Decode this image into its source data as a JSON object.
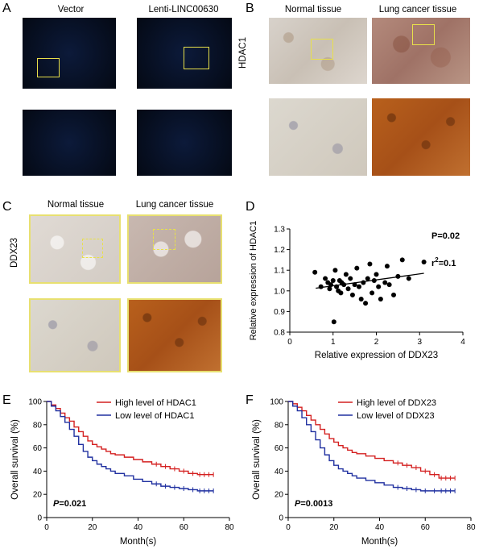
{
  "panels": {
    "A": {
      "letter": "A",
      "captions": [
        "Vector",
        "Lenti-LINC00630"
      ]
    },
    "B": {
      "letter": "B",
      "row_label": "HDAC1",
      "captions": [
        "Normal tissue",
        "Lung cancer tissue"
      ]
    },
    "C": {
      "letter": "C",
      "row_label": "DDX23",
      "captions": [
        "Normal tissue",
        "Lung cancer tissue"
      ]
    },
    "D": {
      "letter": "D"
    },
    "E": {
      "letter": "E"
    },
    "F": {
      "letter": "F"
    }
  },
  "colors": {
    "high_line": "#d42020",
    "low_line": "#2030a0",
    "highlight_box": "#e8e04a"
  },
  "chart_data": [
    {
      "panel": "D",
      "type": "scatter",
      "xlabel": "Relative expression of DDX23",
      "ylabel": "Relative expression of HDAC1",
      "xlim": [
        0,
        4
      ],
      "ylim": [
        0.8,
        1.3
      ],
      "xticks": [
        "0",
        "1",
        "2",
        "3",
        "4"
      ],
      "yticks": [
        "0.8",
        "0.9",
        "1.0",
        "1.1",
        "1.2",
        "1.3"
      ],
      "annotations": {
        "p_value": "P=0.02",
        "r2_prefix": "r",
        "r2_sup": "2",
        "r2_value": "=0.1"
      },
      "regression": {
        "x": [
          0.6,
          3.1
        ],
        "y": [
          1.013,
          1.085
        ]
      },
      "points": [
        [
          0.58,
          1.09
        ],
        [
          0.72,
          1.02
        ],
        [
          0.82,
          1.06
        ],
        [
          0.88,
          1.04
        ],
        [
          0.92,
          1.01
        ],
        [
          0.95,
          1.03
        ],
        [
          1.0,
          1.05
        ],
        [
          1.02,
          0.85
        ],
        [
          1.05,
          1.1
        ],
        [
          1.08,
          1.02
        ],
        [
          1.12,
          1.0
        ],
        [
          1.15,
          1.05
        ],
        [
          1.18,
          0.99
        ],
        [
          1.2,
          1.04
        ],
        [
          1.25,
          1.03
        ],
        [
          1.3,
          1.08
        ],
        [
          1.35,
          1.01
        ],
        [
          1.4,
          1.06
        ],
        [
          1.45,
          0.98
        ],
        [
          1.5,
          1.03
        ],
        [
          1.55,
          1.11
        ],
        [
          1.6,
          1.02
        ],
        [
          1.65,
          0.96
        ],
        [
          1.7,
          1.04
        ],
        [
          1.75,
          0.94
        ],
        [
          1.8,
          1.06
        ],
        [
          1.85,
          1.13
        ],
        [
          1.9,
          0.99
        ],
        [
          1.95,
          1.05
        ],
        [
          2.0,
          1.08
        ],
        [
          2.05,
          1.02
        ],
        [
          2.1,
          0.96
        ],
        [
          2.2,
          1.04
        ],
        [
          2.25,
          1.12
        ],
        [
          2.3,
          1.03
        ],
        [
          2.4,
          0.98
        ],
        [
          2.5,
          1.07
        ],
        [
          2.6,
          1.15
        ],
        [
          2.75,
          1.06
        ],
        [
          3.1,
          1.14
        ]
      ]
    },
    {
      "panel": "E",
      "type": "line",
      "xlabel": "Month(s)",
      "ylabel": "Overall survival (%)",
      "xlim": [
        0,
        80
      ],
      "ylim": [
        0,
        100
      ],
      "xticks": [
        "0",
        "20",
        "40",
        "60",
        "80"
      ],
      "yticks": [
        "0",
        "20",
        "40",
        "60",
        "80",
        "100"
      ],
      "p_label": "P",
      "p_value": "=0.021",
      "series": [
        {
          "name": "High level of HDAC1",
          "x": [
            0,
            2,
            4,
            6,
            8,
            10,
            12,
            14,
            16,
            18,
            20,
            22,
            24,
            26,
            28,
            30,
            34,
            38,
            42,
            46,
            50,
            54,
            58,
            62,
            66,
            70,
            73
          ],
          "y": [
            100,
            97,
            94,
            90,
            86,
            83,
            78,
            74,
            70,
            66,
            63,
            61,
            59,
            57,
            55,
            54,
            52,
            50,
            48,
            46,
            44,
            42,
            40,
            38,
            37,
            37,
            37
          ]
        },
        {
          "name": "Low level of HDAC1",
          "x": [
            0,
            2,
            4,
            6,
            8,
            10,
            12,
            14,
            16,
            18,
            20,
            22,
            24,
            26,
            28,
            30,
            34,
            38,
            42,
            46,
            50,
            54,
            58,
            62,
            66,
            70,
            73
          ],
          "y": [
            100,
            96,
            92,
            87,
            82,
            76,
            70,
            63,
            57,
            52,
            49,
            46,
            44,
            42,
            40,
            38,
            36,
            33,
            31,
            29,
            27,
            26,
            25,
            24,
            23,
            23,
            23
          ]
        }
      ]
    },
    {
      "panel": "F",
      "type": "line",
      "xlabel": "Month(s)",
      "ylabel": "Overall survival (%)",
      "xlim": [
        0,
        80
      ],
      "ylim": [
        0,
        100
      ],
      "xticks": [
        "0",
        "20",
        "40",
        "60",
        "80"
      ],
      "yticks": [
        "0",
        "20",
        "40",
        "60",
        "80",
        "100"
      ],
      "p_label": "P",
      "p_value": "=0.0013",
      "series": [
        {
          "name": "High level of DDX23",
          "x": [
            0,
            2,
            4,
            6,
            8,
            10,
            12,
            14,
            16,
            18,
            20,
            22,
            24,
            26,
            28,
            30,
            34,
            38,
            42,
            46,
            50,
            54,
            58,
            62,
            66,
            70,
            73
          ],
          "y": [
            100,
            98,
            95,
            92,
            88,
            84,
            80,
            76,
            72,
            68,
            65,
            62,
            60,
            58,
            56,
            55,
            53,
            51,
            49,
            47,
            45,
            43,
            40,
            37,
            34,
            34,
            34
          ]
        },
        {
          "name": "Low level of DDX23",
          "x": [
            0,
            2,
            4,
            6,
            8,
            10,
            12,
            14,
            16,
            18,
            20,
            22,
            24,
            26,
            28,
            30,
            34,
            38,
            42,
            46,
            50,
            54,
            58,
            62,
            66,
            70,
            73
          ],
          "y": [
            100,
            96,
            92,
            86,
            80,
            74,
            67,
            60,
            54,
            49,
            45,
            42,
            40,
            38,
            36,
            34,
            32,
            30,
            28,
            26,
            25,
            24,
            23,
            23,
            23,
            23,
            23
          ]
        }
      ]
    }
  ]
}
